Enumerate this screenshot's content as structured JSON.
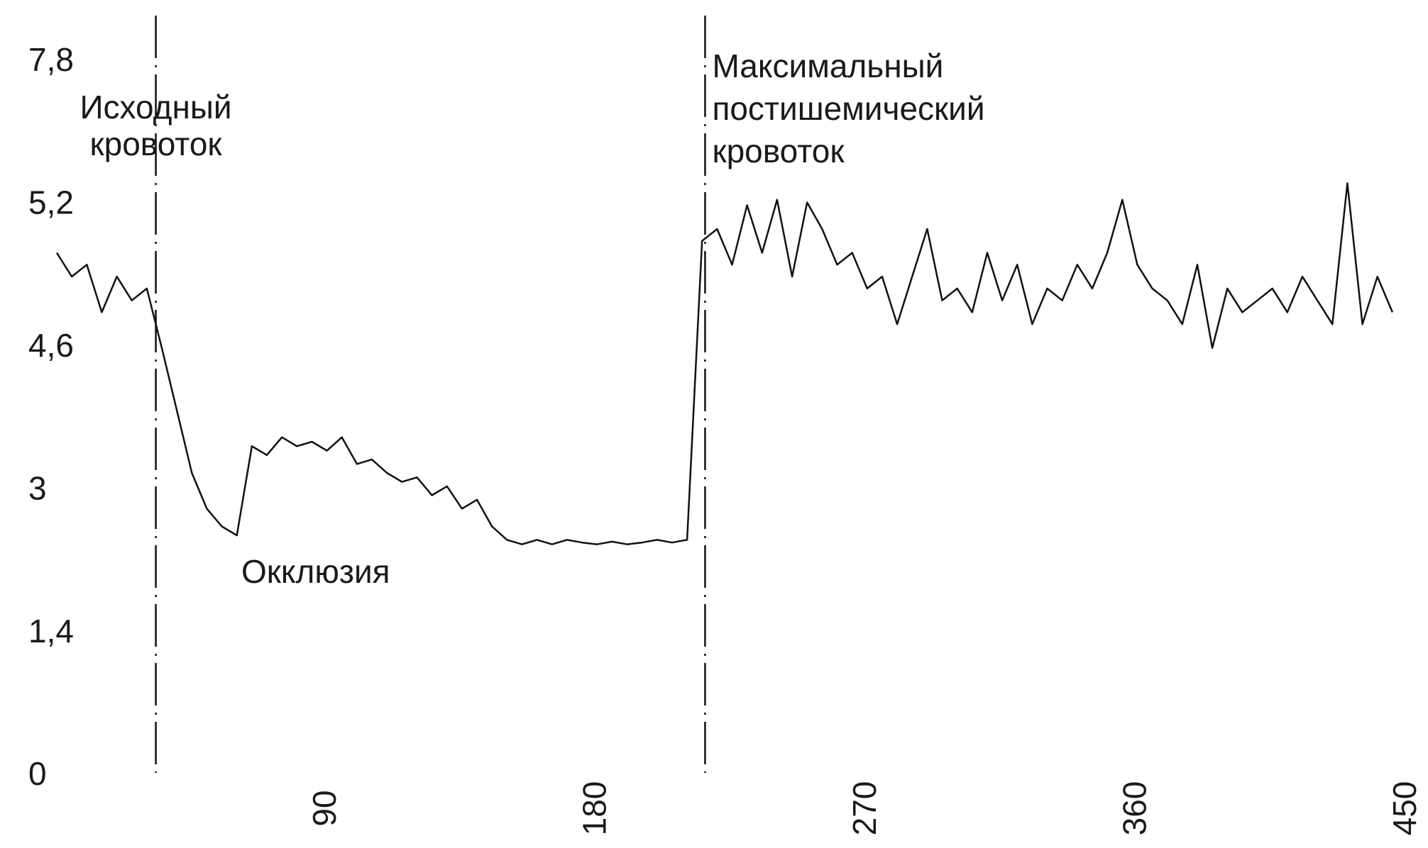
{
  "chart_data": {
    "type": "line",
    "x": [
      0,
      5,
      10,
      15,
      20,
      25,
      30,
      35,
      40,
      45,
      50,
      55,
      60,
      65,
      70,
      75,
      80,
      85,
      90,
      95,
      100,
      105,
      110,
      115,
      120,
      125,
      130,
      135,
      140,
      145,
      150,
      155,
      160,
      165,
      170,
      175,
      180,
      185,
      190,
      195,
      200,
      205,
      210,
      215,
      220,
      225,
      230,
      235,
      240,
      245,
      250,
      255,
      260,
      265,
      270,
      275,
      280,
      285,
      290,
      295,
      300,
      305,
      310,
      315,
      320,
      325,
      330,
      335,
      340,
      345,
      350,
      355,
      360,
      365,
      370,
      375,
      380,
      385,
      390,
      395,
      400,
      405,
      410,
      415,
      420,
      425,
      430,
      435,
      440,
      445
    ],
    "series": [
      {
        "color": "#111111",
        "values": [
          5.0,
          4.9,
          4.95,
          4.75,
          4.9,
          4.8,
          4.85,
          4.6,
          3.9,
          3.2,
          2.8,
          2.6,
          2.5,
          3.5,
          3.4,
          3.6,
          3.5,
          3.55,
          3.45,
          3.6,
          3.3,
          3.35,
          3.2,
          3.1,
          3.15,
          2.95,
          3.05,
          2.8,
          2.9,
          2.6,
          2.45,
          2.4,
          2.45,
          2.4,
          2.45,
          2.42,
          2.4,
          2.43,
          2.4,
          2.42,
          2.45,
          2.42,
          2.45,
          5.05,
          5.1,
          4.95,
          5.2,
          5.0,
          5.3,
          4.9,
          5.25,
          5.1,
          4.95,
          5.0,
          4.85,
          4.9,
          4.7,
          4.9,
          5.1,
          4.8,
          4.85,
          4.75,
          5.0,
          4.8,
          4.95,
          4.7,
          4.85,
          4.8,
          4.95,
          4.85,
          5.0,
          5.3,
          4.95,
          4.85,
          4.8,
          4.7,
          4.95,
          4.6,
          4.85,
          4.75,
          4.8,
          4.85,
          4.75,
          4.9,
          4.8,
          4.7,
          5.6,
          4.7,
          4.9,
          4.75
        ]
      }
    ],
    "xlim": [
      0,
      450
    ],
    "xticks": [
      90,
      180,
      270,
      360,
      450
    ],
    "ylim": [
      0,
      7.8
    ],
    "yticks": [
      0,
      {
        "value": 1.4,
        "label": "1,4"
      },
      3,
      {
        "value": 4.6,
        "label": "4,6"
      },
      {
        "value": 5.2,
        "label": "5,2"
      },
      {
        "value": 7.8,
        "label": "7,8"
      }
    ],
    "markers": [
      {
        "x": 33,
        "label": [
          "Исходный",
          "кровоток"
        ]
      },
      {
        "x": 216,
        "label": [
          "Максимальный",
          "постишемический",
          "кровоток"
        ]
      }
    ],
    "annotations": [
      "Окклюзия"
    ],
    "grid": false
  }
}
